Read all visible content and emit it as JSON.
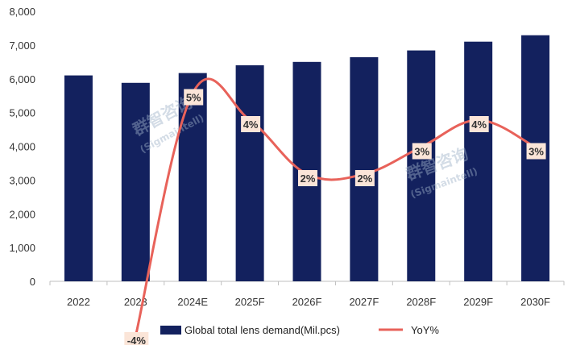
{
  "chart_data": {
    "type": "bar+line",
    "categories": [
      "2022",
      "2023",
      "2024E",
      "2025F",
      "2026F",
      "2027F",
      "2028F",
      "2029F",
      "2030F"
    ],
    "series": [
      {
        "name": "Global total lens demand(Mil.pcs)",
        "type": "bar",
        "axis": "left",
        "color": "#13215e",
        "values": [
          6100,
          5880,
          6170,
          6400,
          6500,
          6640,
          6840,
          7100,
          7290
        ]
      },
      {
        "name": "YoY%",
        "type": "line",
        "axis": "hidden-right",
        "color": "#e8625a",
        "values": [
          null,
          -4,
          5,
          4,
          2,
          2,
          3,
          4,
          3
        ],
        "labels": [
          "",
          "-4%",
          "5%",
          "4%",
          "2%",
          "2%",
          "3%",
          "4%",
          "3%"
        ]
      }
    ],
    "y_ticks": [
      "0",
      "1,000",
      "2,000",
      "3,000",
      "4,000",
      "5,000",
      "6,000",
      "7,000",
      "8,000"
    ],
    "ylim": [
      0,
      8000
    ],
    "grid": false,
    "legend": "bottom",
    "watermark": [
      "群智咨询",
      "(Sigmaintell)"
    ]
  }
}
